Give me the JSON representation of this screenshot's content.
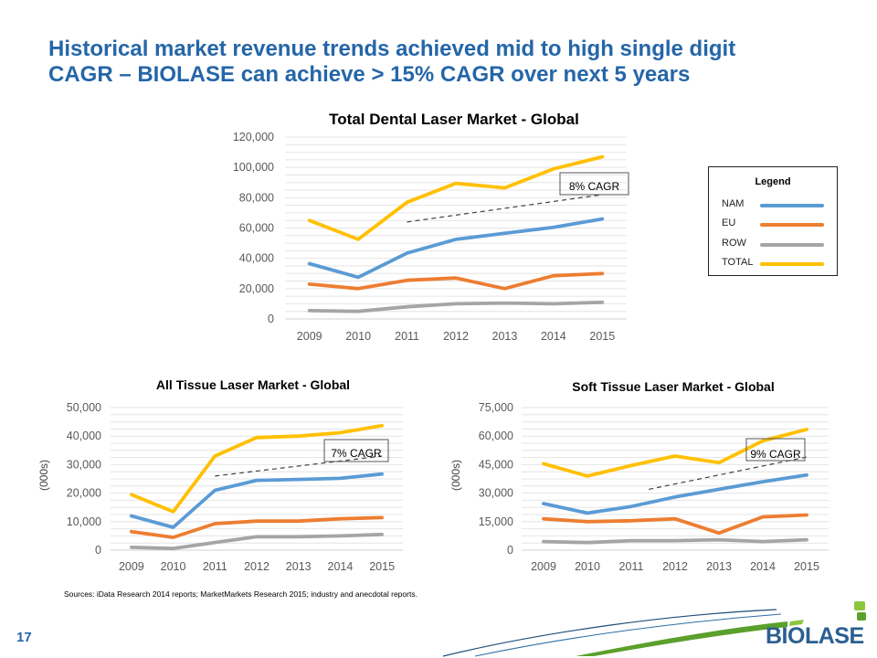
{
  "title": {
    "line1": "Historical market revenue trends achieved mid to high single digit",
    "line2": "CAGR – BIOLASE can achieve > 15% CAGR over next 5 years"
  },
  "legend": {
    "title": "Legend",
    "items": [
      {
        "label": "NAM",
        "color": "#5b9bd5"
      },
      {
        "label": "EU",
        "color": "#ed7d31"
      },
      {
        "label": "ROW",
        "color": "#a5a5a5"
      },
      {
        "label": "TOTAL",
        "color": "#ffc000"
      }
    ]
  },
  "series_colors": {
    "NAM": "#5b9bd5",
    "EU": "#ed7d31",
    "ROW": "#a5a5a5",
    "TOTAL": "#ffc000"
  },
  "chart_data": [
    {
      "type": "line",
      "title": "Total Dental Laser Market - Global",
      "ylabel": "",
      "x": [
        "2009",
        "2010",
        "2011",
        "2012",
        "2013",
        "2014",
        "2015"
      ],
      "ylim": [
        0,
        120000
      ],
      "yticks": [
        "0",
        "20,000",
        "40,000",
        "60,000",
        "80,000",
        "100,000",
        "120,000"
      ],
      "series": [
        {
          "name": "NAM",
          "values": [
            36500,
            27500,
            43500,
            52500,
            56500,
            60500,
            66000
          ]
        },
        {
          "name": "EU",
          "values": [
            23000,
            20000,
            25500,
            27000,
            20000,
            28500,
            30000
          ]
        },
        {
          "name": "ROW",
          "values": [
            5500,
            5000,
            8000,
            10000,
            10500,
            10000,
            11000
          ]
        },
        {
          "name": "TOTAL",
          "values": [
            65000,
            52500,
            77000,
            89500,
            86500,
            99000,
            107000
          ]
        }
      ],
      "trend": {
        "from": [
          2.0,
          64000
        ],
        "to": [
          6.0,
          82000
        ]
      },
      "annotation": "8% CAGR",
      "grid": true
    },
    {
      "type": "line",
      "title": "All Tissue Laser Market - Global",
      "ylabel": "(000s)",
      "x": [
        "2009",
        "2010",
        "2011",
        "2012",
        "2013",
        "2014",
        "2015"
      ],
      "ylim": [
        0,
        50000
      ],
      "yticks": [
        "0",
        "10,000",
        "20,000",
        "30,000",
        "40,000",
        "50,000"
      ],
      "series": [
        {
          "name": "NAM",
          "values": [
            12000,
            8000,
            21000,
            24500,
            24800,
            25200,
            26700
          ]
        },
        {
          "name": "EU",
          "values": [
            6500,
            4500,
            9300,
            10200,
            10200,
            11000,
            11400
          ]
        },
        {
          "name": "ROW",
          "values": [
            1000,
            600,
            2700,
            4700,
            4700,
            5000,
            5500
          ]
        },
        {
          "name": "TOTAL",
          "values": [
            19500,
            13500,
            33000,
            39500,
            40000,
            41200,
            43700
          ]
        }
      ],
      "trend": {
        "from": [
          2.0,
          26000
        ],
        "to": [
          6.0,
          33000
        ]
      },
      "annotation": "7% CAGR",
      "grid": true
    },
    {
      "type": "line",
      "title": "Soft Tissue Laser Market - Global",
      "ylabel": "(000s)",
      "x": [
        "2009",
        "2010",
        "2011",
        "2012",
        "2013",
        "2014",
        "2015"
      ],
      "ylim": [
        0,
        75000
      ],
      "yticks": [
        "0",
        "15,000",
        "30,000",
        "45,000",
        "60,000",
        "75,000"
      ],
      "series": [
        {
          "name": "NAM",
          "values": [
            24500,
            19500,
            23000,
            28000,
            32000,
            36000,
            39500
          ]
        },
        {
          "name": "EU",
          "values": [
            16500,
            15000,
            15500,
            16500,
            9000,
            17500,
            18500
          ]
        },
        {
          "name": "ROW",
          "values": [
            4500,
            4000,
            5000,
            5000,
            5500,
            4500,
            5500
          ]
        },
        {
          "name": "TOTAL",
          "values": [
            45500,
            39000,
            44500,
            49500,
            46000,
            57500,
            63500
          ]
        }
      ],
      "trend": {
        "from": [
          2.4,
          32000
        ],
        "to": [
          6.0,
          49000
        ]
      },
      "annotation": "9% CAGR",
      "grid": true
    }
  ],
  "sources": "Sources: iData Research 2014 reports; MarketMarkets Research 2015; industry and anecdotal reports.",
  "page_number": "17",
  "logo_text": "BIOLASE"
}
